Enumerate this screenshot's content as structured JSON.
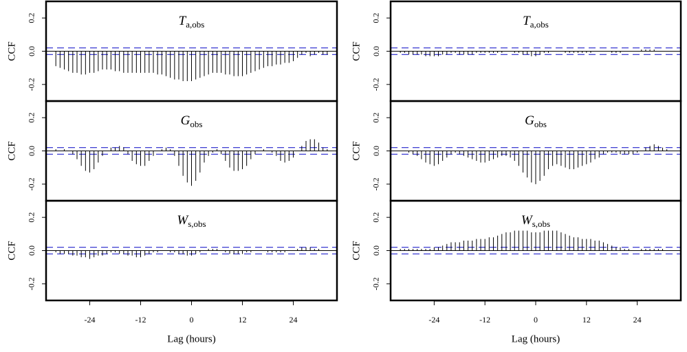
{
  "chart_data": [
    {
      "type": "stem",
      "title_main": "T",
      "title_sub": "a,obs",
      "ylabel": "CCF",
      "color": "#000000",
      "ci": [
        -0.02,
        0.02
      ],
      "ci_color": "#2222cc",
      "xlim": [
        -34.3,
        34.3
      ],
      "ylim": [
        -0.3,
        0.3
      ],
      "yticks": [
        0.2,
        {
          "value": 0,
          "label": "0.0"
        },
        -0.2
      ],
      "x": [
        -32,
        -31,
        -30,
        -29,
        -28,
        -27,
        -26,
        -25,
        -24,
        -23,
        -22,
        -21,
        -20,
        -19,
        -18,
        -17,
        -16,
        -15,
        -14,
        -13,
        -12,
        -11,
        -10,
        -9,
        -8,
        -7,
        -6,
        -5,
        -4,
        -3,
        -2,
        -1,
        0,
        1,
        2,
        3,
        4,
        5,
        6,
        7,
        8,
        9,
        10,
        11,
        12,
        13,
        14,
        15,
        16,
        17,
        18,
        19,
        20,
        21,
        22,
        23,
        24,
        25,
        26,
        27,
        28,
        29,
        30,
        31,
        32
      ],
      "values": [
        -0.09,
        -0.1,
        -0.11,
        -0.12,
        -0.13,
        -0.13,
        -0.14,
        -0.14,
        -0.13,
        -0.13,
        -0.12,
        -0.11,
        -0.11,
        -0.11,
        -0.12,
        -0.12,
        -0.13,
        -0.13,
        -0.13,
        -0.13,
        -0.13,
        -0.13,
        -0.13,
        -0.13,
        -0.14,
        -0.14,
        -0.15,
        -0.16,
        -0.17,
        -0.17,
        -0.18,
        -0.18,
        -0.18,
        -0.17,
        -0.16,
        -0.15,
        -0.14,
        -0.13,
        -0.13,
        -0.13,
        -0.14,
        -0.14,
        -0.15,
        -0.15,
        -0.15,
        -0.14,
        -0.13,
        -0.12,
        -0.11,
        -0.1,
        -0.09,
        -0.09,
        -0.08,
        -0.08,
        -0.07,
        -0.07,
        -0.06,
        -0.04,
        -0.02,
        -0.01,
        -0.03,
        -0.02,
        -0.01,
        -0.02,
        -0.02
      ]
    },
    {
      "type": "stem",
      "title_main": "G",
      "title_sub": "obs",
      "ylabel": "CCF",
      "color": "#000000",
      "ci": [
        -0.02,
        0.02
      ],
      "ci_color": "#2222cc",
      "xlim": [
        -34.3,
        34.3
      ],
      "ylim": [
        -0.3,
        0.3
      ],
      "yticks": [
        0.2,
        {
          "value": 0,
          "label": "0.0"
        },
        -0.2
      ],
      "x": [
        -32,
        -31,
        -30,
        -29,
        -28,
        -27,
        -26,
        -25,
        -24,
        -23,
        -22,
        -21,
        -20,
        -19,
        -18,
        -17,
        -16,
        -15,
        -14,
        -13,
        -12,
        -11,
        -10,
        -9,
        -8,
        -7,
        -6,
        -5,
        -4,
        -3,
        -2,
        -1,
        0,
        1,
        2,
        3,
        4,
        5,
        6,
        7,
        8,
        9,
        10,
        11,
        12,
        13,
        14,
        15,
        16,
        17,
        18,
        19,
        20,
        21,
        22,
        23,
        24,
        25,
        26,
        27,
        28,
        29,
        30,
        31,
        32
      ],
      "values": [
        0.01,
        0,
        0.01,
        0,
        -0.02,
        -0.05,
        -0.09,
        -0.12,
        -0.13,
        -0.11,
        -0.07,
        -0.03,
        0,
        0.02,
        0.02,
        0.03,
        0.02,
        -0.02,
        -0.06,
        -0.08,
        -0.09,
        -0.09,
        -0.06,
        -0.03,
        0,
        0.01,
        0.02,
        0.01,
        -0.03,
        -0.09,
        -0.15,
        -0.19,
        -0.21,
        -0.18,
        -0.13,
        -0.07,
        -0.03,
        -0.01,
        0.01,
        -0.02,
        -0.06,
        -0.1,
        -0.12,
        -0.12,
        -0.11,
        -0.09,
        -0.05,
        -0.02,
        0,
        0.01,
        0,
        -0.01,
        -0.03,
        -0.06,
        -0.07,
        -0.06,
        -0.04,
        0,
        0.03,
        0.06,
        0.07,
        0.07,
        0.05,
        0.02,
        0.01
      ]
    },
    {
      "type": "stem",
      "title_main": "W",
      "title_sub": "s,obs",
      "ylabel": "CCF",
      "xlabel": "Lag (hours)",
      "color": "#000000",
      "ci": [
        -0.02,
        0.02
      ],
      "ci_color": "#2222cc",
      "xlim": [
        -34.3,
        34.3
      ],
      "ylim": [
        -0.3,
        0.3
      ],
      "yticks": [
        0.2,
        {
          "value": 0,
          "label": "0.0"
        },
        -0.2
      ],
      "xticks": [
        -24,
        -12,
        0,
        12,
        24
      ],
      "x": [
        -32,
        -31,
        -30,
        -29,
        -28,
        -27,
        -26,
        -25,
        -24,
        -23,
        -22,
        -21,
        -20,
        -19,
        -18,
        -17,
        -16,
        -15,
        -14,
        -13,
        -12,
        -11,
        -10,
        -9,
        -8,
        -7,
        -6,
        -5,
        -4,
        -3,
        -2,
        -1,
        0,
        1,
        2,
        3,
        4,
        5,
        6,
        7,
        8,
        9,
        10,
        11,
        12,
        13,
        14,
        15,
        16,
        17,
        18,
        19,
        20,
        21,
        22,
        23,
        24,
        25,
        26,
        27,
        28,
        29,
        30,
        31,
        32
      ],
      "values": [
        -0.01,
        -0.02,
        -0.02,
        -0.02,
        -0.03,
        -0.03,
        -0.04,
        -0.04,
        -0.05,
        -0.04,
        -0.03,
        -0.03,
        -0.02,
        -0.01,
        -0.01,
        -0.02,
        -0.02,
        -0.03,
        -0.03,
        -0.04,
        -0.04,
        -0.03,
        -0.02,
        -0.01,
        -0.01,
        0,
        0,
        -0.01,
        -0.01,
        -0.02,
        -0.02,
        -0.03,
        -0.03,
        -0.02,
        -0.01,
        0,
        0.01,
        0.01,
        0.01,
        0,
        -0.01,
        -0.02,
        -0.02,
        -0.02,
        -0.02,
        -0.01,
        -0.01,
        0,
        0,
        0,
        -0.01,
        -0.01,
        -0.01,
        -0.01,
        -0.01,
        0,
        0,
        0.01,
        0.02,
        0.02,
        0.02,
        0.01,
        0.01,
        0,
        0
      ]
    },
    {
      "type": "stem",
      "title_main": "T",
      "title_sub": "a,obs",
      "ylabel": "CCF",
      "color": "#000000",
      "ci": [
        -0.02,
        0.02
      ],
      "ci_color": "#2222cc",
      "xlim": [
        -34.3,
        34.3
      ],
      "ylim": [
        -0.3,
        0.3
      ],
      "yticks": [
        0.2,
        {
          "value": 0,
          "label": "0.0"
        },
        -0.2
      ],
      "x": [
        -32,
        -31,
        -30,
        -29,
        -28,
        -27,
        -26,
        -25,
        -24,
        -23,
        -22,
        -21,
        -20,
        -19,
        -18,
        -17,
        -16,
        -15,
        -14,
        -13,
        -12,
        -11,
        -10,
        -9,
        -8,
        -7,
        -6,
        -5,
        -4,
        -3,
        -2,
        -1,
        0,
        1,
        2,
        3,
        4,
        5,
        6,
        7,
        8,
        9,
        10,
        11,
        12,
        13,
        14,
        15,
        16,
        17,
        18,
        19,
        20,
        21,
        22,
        23,
        24,
        25,
        26,
        27,
        28,
        29,
        30,
        31,
        32
      ],
      "values": [
        -0.01,
        -0.01,
        -0.02,
        -0.02,
        -0.02,
        -0.02,
        -0.03,
        -0.03,
        -0.03,
        -0.03,
        -0.02,
        -0.02,
        -0.01,
        -0.01,
        -0.02,
        -0.02,
        -0.02,
        -0.02,
        -0.01,
        -0.01,
        -0.01,
        -0.01,
        -0.01,
        -0.01,
        -0.01,
        0,
        0,
        -0.01,
        -0.01,
        -0.02,
        -0.02,
        -0.03,
        -0.03,
        -0.02,
        -0.01,
        -0.01,
        0,
        0,
        0,
        -0.01,
        -0.01,
        -0.01,
        -0.01,
        -0.01,
        -0.01,
        -0.01,
        0,
        0,
        0,
        0,
        -0.01,
        -0.01,
        -0.01,
        0,
        0,
        0,
        0,
        0.01,
        0.01,
        0.01,
        0.01,
        0,
        0,
        0,
        0
      ]
    },
    {
      "type": "stem",
      "title_main": "G",
      "title_sub": "obs",
      "ylabel": "CCF",
      "color": "#000000",
      "ci": [
        -0.02,
        0.02
      ],
      "ci_color": "#2222cc",
      "xlim": [
        -34.3,
        34.3
      ],
      "ylim": [
        -0.3,
        0.3
      ],
      "yticks": [
        0.2,
        {
          "value": 0,
          "label": "0.0"
        },
        -0.2
      ],
      "x": [
        -32,
        -31,
        -30,
        -29,
        -28,
        -27,
        -26,
        -25,
        -24,
        -23,
        -22,
        -21,
        -20,
        -19,
        -18,
        -17,
        -16,
        -15,
        -14,
        -13,
        -12,
        -11,
        -10,
        -9,
        -8,
        -7,
        -6,
        -5,
        -4,
        -3,
        -2,
        -1,
        0,
        1,
        2,
        3,
        4,
        5,
        6,
        7,
        8,
        9,
        10,
        11,
        12,
        13,
        14,
        15,
        16,
        17,
        18,
        19,
        20,
        21,
        22,
        23,
        24,
        25,
        26,
        27,
        28,
        29,
        30,
        31,
        32
      ],
      "values": [
        0,
        0,
        -0.01,
        -0.02,
        -0.03,
        -0.05,
        -0.07,
        -0.08,
        -0.09,
        -0.08,
        -0.06,
        -0.04,
        -0.02,
        -0.01,
        -0.02,
        -0.03,
        -0.04,
        -0.05,
        -0.06,
        -0.07,
        -0.07,
        -0.06,
        -0.05,
        -0.04,
        -0.03,
        -0.03,
        -0.04,
        -0.06,
        -0.09,
        -0.13,
        -0.16,
        -0.19,
        -0.2,
        -0.18,
        -0.15,
        -0.11,
        -0.09,
        -0.08,
        -0.09,
        -0.1,
        -0.11,
        -0.11,
        -0.1,
        -0.09,
        -0.08,
        -0.07,
        -0.05,
        -0.04,
        -0.02,
        -0.01,
        -0.01,
        -0.01,
        -0.02,
        -0.02,
        -0.02,
        -0.02,
        -0.01,
        0,
        0.02,
        0.03,
        0.04,
        0.03,
        0.02,
        0.01,
        0
      ]
    },
    {
      "type": "stem",
      "title_main": "W",
      "title_sub": "s,obs",
      "ylabel": "CCF",
      "xlabel": "Lag (hours)",
      "color": "#000000",
      "ci": [
        -0.02,
        0.02
      ],
      "ci_color": "#2222cc",
      "xlim": [
        -34.3,
        34.3
      ],
      "ylim": [
        -0.3,
        0.3
      ],
      "yticks": [
        0.2,
        {
          "value": 0,
          "label": "0.0"
        },
        -0.2
      ],
      "xticks": [
        -24,
        -12,
        0,
        12,
        24
      ],
      "x": [
        -32,
        -31,
        -30,
        -29,
        -28,
        -27,
        -26,
        -25,
        -24,
        -23,
        -22,
        -21,
        -20,
        -19,
        -18,
        -17,
        -16,
        -15,
        -14,
        -13,
        -12,
        -11,
        -10,
        -9,
        -8,
        -7,
        -6,
        -5,
        -4,
        -3,
        -2,
        -1,
        0,
        1,
        2,
        3,
        4,
        5,
        6,
        7,
        8,
        9,
        10,
        11,
        12,
        13,
        14,
        15,
        16,
        17,
        18,
        19,
        20,
        21,
        22,
        23,
        24,
        25,
        26,
        27,
        28,
        29,
        30,
        31,
        32
      ],
      "values": [
        0.01,
        0.01,
        0.01,
        0.01,
        0.01,
        0.01,
        0.01,
        0.01,
        0.02,
        0.02,
        0.03,
        0.04,
        0.05,
        0.05,
        0.05,
        0.06,
        0.06,
        0.06,
        0.07,
        0.07,
        0.07,
        0.08,
        0.08,
        0.09,
        0.1,
        0.11,
        0.11,
        0.12,
        0.12,
        0.12,
        0.12,
        0.11,
        0.11,
        0.11,
        0.12,
        0.12,
        0.12,
        0.12,
        0.11,
        0.1,
        0.09,
        0.08,
        0.08,
        0.07,
        0.07,
        0.07,
        0.06,
        0.06,
        0.05,
        0.04,
        0.03,
        0.02,
        0.02,
        0.01,
        0.01,
        0,
        0,
        0.01,
        0.01,
        0.01,
        0.01,
        0.01,
        0.01,
        0,
        0
      ]
    }
  ]
}
